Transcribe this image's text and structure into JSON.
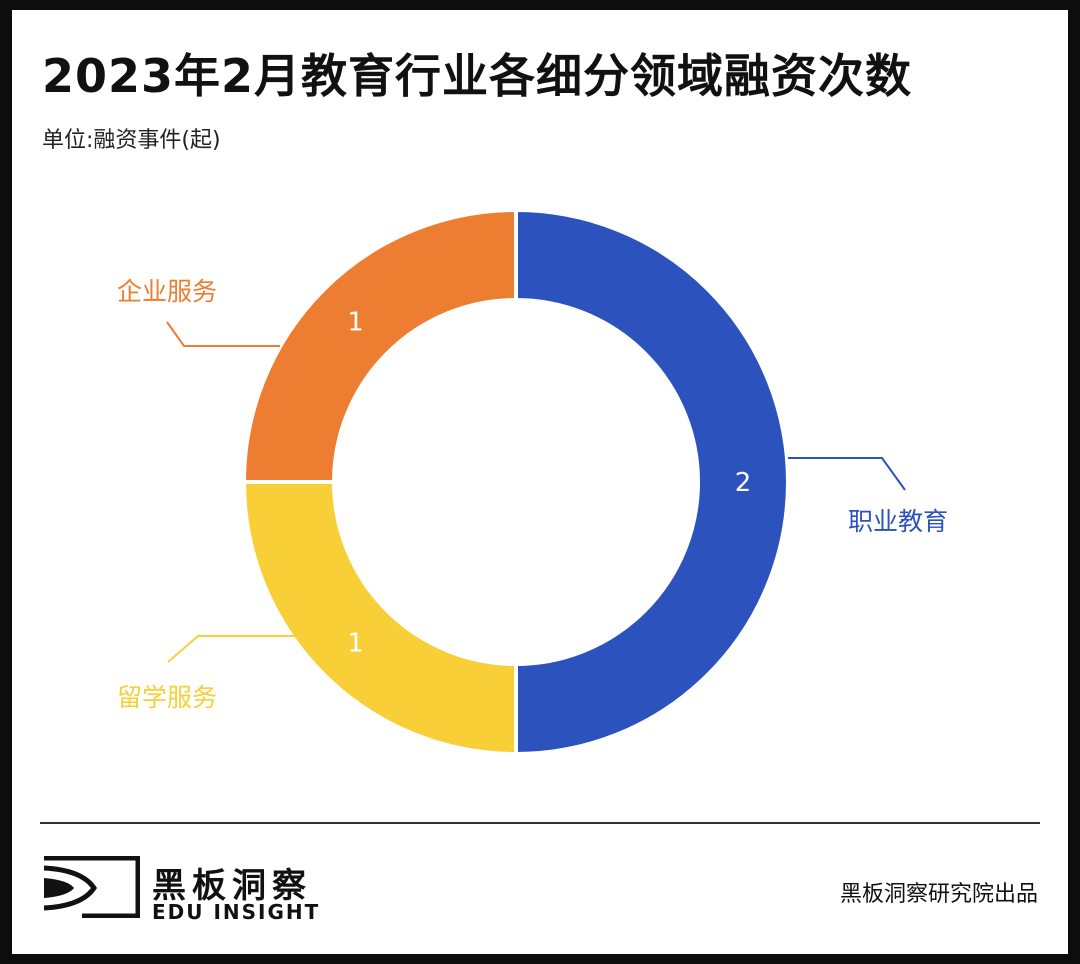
{
  "title": "2023年2月教育行业各细分领域融资次数",
  "subtitle": "单位:融资事件(起)",
  "chart_data": {
    "type": "pie",
    "title": "2023年2月教育行业各细分领域融资次数",
    "unit": "单位:融资事件(起)",
    "slices": [
      {
        "label": "职业教育",
        "value": 2,
        "color": "#2c52be"
      },
      {
        "label": "留学服务",
        "value": 1,
        "color": "#f8cf37"
      },
      {
        "label": "企业服务",
        "value": 1,
        "color": "#ed7d31"
      }
    ]
  },
  "footer": {
    "brand_cn": "黑板洞察",
    "brand_en": "EDU INSIGHT",
    "credit": "黑板洞察研究院出品"
  }
}
